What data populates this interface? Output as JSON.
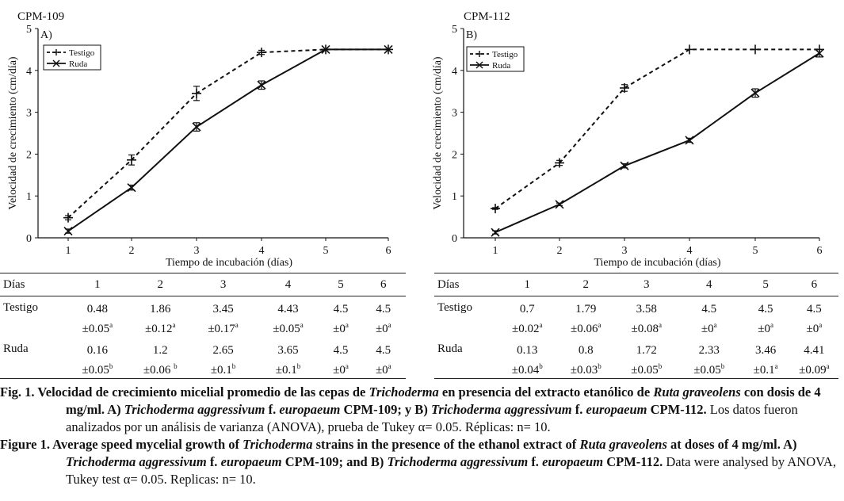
{
  "chart_data": [
    {
      "type": "line",
      "panel_title": "CPM-109",
      "panel_letter": "A)",
      "xlabel": "Tiempo de incubación (días)",
      "ylabel": "Velocidad de crecimiento (cm/día)",
      "x": [
        1,
        2,
        3,
        4,
        5,
        6
      ],
      "xlim": [
        0.5,
        6
      ],
      "ylim": [
        0,
        5
      ],
      "yticks": [
        0,
        1,
        2,
        3,
        4,
        5
      ],
      "series": [
        {
          "name": "Testigo",
          "style": "dashed",
          "marker": "plus",
          "values": [
            0.48,
            1.86,
            3.45,
            4.43,
            4.5,
            4.5
          ],
          "errors": [
            0.05,
            0.12,
            0.17,
            0.05,
            0,
            0
          ]
        },
        {
          "name": "Ruda",
          "style": "solid",
          "marker": "x",
          "values": [
            0.16,
            1.2,
            2.65,
            3.65,
            4.5,
            4.5
          ],
          "errors": [
            0.05,
            0.06,
            0.1,
            0.1,
            0,
            0
          ]
        }
      ],
      "legend_position": "top-left"
    },
    {
      "type": "line",
      "panel_title": "CPM-112",
      "panel_letter": "B)",
      "xlabel": "Tiempo de incubación (días)",
      "ylabel": "Velocidad de crecimiento (cm/día)",
      "x": [
        1,
        2,
        3,
        4,
        5,
        6
      ],
      "xlim": [
        0.5,
        6
      ],
      "ylim": [
        0,
        5
      ],
      "yticks": [
        0,
        1,
        2,
        3,
        4,
        5
      ],
      "series": [
        {
          "name": "Testigo",
          "style": "dashed",
          "marker": "plus",
          "values": [
            0.7,
            1.79,
            3.58,
            4.5,
            4.5,
            4.5
          ],
          "errors": [
            0.02,
            0.06,
            0.08,
            0,
            0,
            0
          ]
        },
        {
          "name": "Ruda",
          "style": "solid",
          "marker": "x",
          "values": [
            0.13,
            0.8,
            1.72,
            2.33,
            3.46,
            4.41
          ],
          "errors": [
            0.04,
            0.03,
            0.05,
            0.05,
            0.1,
            0.09
          ]
        }
      ],
      "legend_position": "top-left"
    }
  ],
  "tables": [
    {
      "header": [
        "Días",
        "1",
        "2",
        "3",
        "4",
        "5",
        "6"
      ],
      "rows": [
        {
          "label": "Testigo",
          "cells": [
            {
              "v": "0.48",
              "sd": "±0.05",
              "sup": "a"
            },
            {
              "v": "1.86",
              "sd": "±0.12",
              "sup": "a"
            },
            {
              "v": "3.45",
              "sd": "±0.17",
              "sup": "a"
            },
            {
              "v": "4.43",
              "sd": "±0.05",
              "sup": "a"
            },
            {
              "v": "4.5",
              "sd": "±0",
              "sup": "a"
            },
            {
              "v": "4.5",
              "sd": "±0",
              "sup": "a"
            }
          ]
        },
        {
          "label": "Ruda",
          "cells": [
            {
              "v": "0.16",
              "sd": "±0.05",
              "sup": "b"
            },
            {
              "v": "1.2",
              "sd": "±0.06 ",
              "sup": "b"
            },
            {
              "v": "2.65",
              "sd": "±0.1",
              "sup": "b"
            },
            {
              "v": "3.65",
              "sd": "±0.1",
              "sup": "b"
            },
            {
              "v": "4.5",
              "sd": "±0",
              "sup": "a"
            },
            {
              "v": "4.5",
              "sd": "±0",
              "sup": "a"
            }
          ]
        }
      ]
    },
    {
      "header": [
        "Días",
        "1",
        "2",
        "3",
        "4",
        "5",
        "6"
      ],
      "rows": [
        {
          "label": "Testigo",
          "cells": [
            {
              "v": "0.7",
              "sd": "±0.02",
              "sup": "a"
            },
            {
              "v": "1.79",
              "sd": "±0.06",
              "sup": "a"
            },
            {
              "v": "3.58",
              "sd": "±0.08",
              "sup": "a"
            },
            {
              "v": "4.5",
              "sd": "±0",
              "sup": "a"
            },
            {
              "v": "4.5",
              "sd": "±0",
              "sup": "a"
            },
            {
              "v": "4.5",
              "sd": "±0",
              "sup": "a"
            }
          ]
        },
        {
          "label": "Ruda",
          "cells": [
            {
              "v": "0.13",
              "sd": "±0.04",
              "sup": "b"
            },
            {
              "v": "0.8",
              "sd": "±0.03",
              "sup": "b"
            },
            {
              "v": "1.72",
              "sd": "±0.05",
              "sup": "b"
            },
            {
              "v": "2.33",
              "sd": "±0.05",
              "sup": "b"
            },
            {
              "v": "3.46",
              "sd": "±0.1",
              "sup": "a"
            },
            {
              "v": "4.41",
              "sd": "±0.09",
              "sup": "a"
            }
          ]
        }
      ]
    }
  ],
  "caption": {
    "es_label": "Fig. 1.",
    "es_bold_1": " Velocidad de crecimiento micelial promedio de las cepas de ",
    "es_it_1": "Trichoderma",
    "es_bold_2": " en presencia del extracto etanólico de ",
    "es_it_2": "Ruta graveolens",
    "es_bold_3": " con dosis de 4 mg/ml. A) ",
    "es_it_3": "Trichoderma aggressivum",
    "es_bold_4": " f. ",
    "es_it_4": "europaeum",
    "es_bold_5": " CPM-109; y B) ",
    "es_it_5": "Trichoderma aggressivum",
    "es_bold_6": " f. ",
    "es_it_6": "europaeum",
    "es_bold_7": " CPM-112.",
    "es_plain": " Los datos fueron analizados por un análisis de varianza (ANOVA), prueba de Tukey α= 0.05. Réplicas: n= 10.",
    "en_label": "Figure 1.",
    "en_bold_1": " Average speed mycelial growth of ",
    "en_it_1": "Trichoderma",
    "en_bold_2": " strains in the presence of the ethanol extract of ",
    "en_it_2": "Ruta graveolens",
    "en_bold_3": " at doses of 4 mg/ml. A) ",
    "en_it_3": "Trichoderma aggressivum",
    "en_bold_4": " f. ",
    "en_it_4": "europaeum",
    "en_bold_5": " CPM-109; and B) ",
    "en_it_5": "Trichoderma aggressivum",
    "en_bold_6": " f. ",
    "en_it_6": "europaeum",
    "en_bold_7": " CPM-112.",
    "en_plain": " Data were analysed by ANOVA, Tukey test α= 0.05. Replicas: n= 10."
  }
}
